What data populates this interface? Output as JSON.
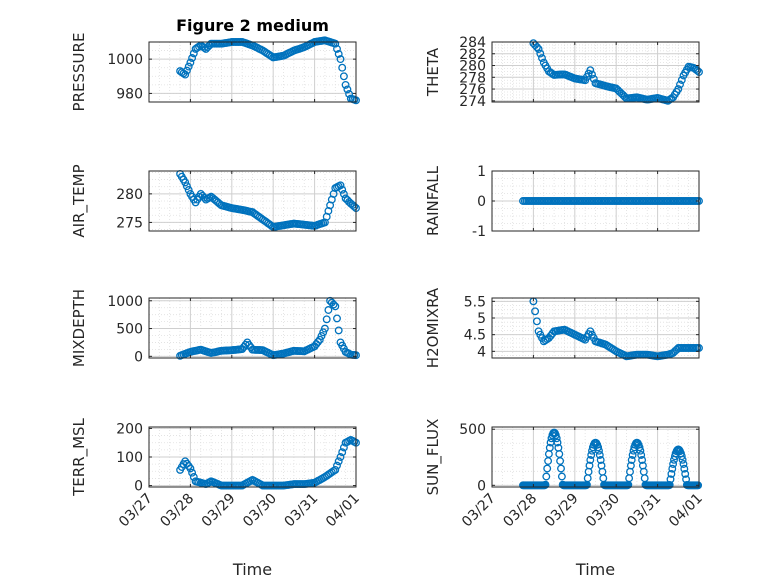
{
  "figure": {
    "title": "Figure 2 medium",
    "marker_color": "#0072BD",
    "axis_color": "#262626",
    "grid_color": "#DFDFDF"
  },
  "chart_data": [
    {
      "id": "pressure",
      "type": "scatter",
      "ylabel": "PRESSURE",
      "title": "Figure 2 medium",
      "xlim": [
        "03/27",
        "04/01"
      ],
      "ylim": [
        975,
        1010
      ],
      "yticks": [
        980,
        1000
      ],
      "xticks": [
        "03/27",
        "03/28",
        "03/29",
        "03/30",
        "03/31",
        "04/01"
      ],
      "show_xticklabels": false,
      "grid": true,
      "series": [
        {
          "x": [
            "03/27 18:00",
            "03/27 21:00",
            "03/28 00:00",
            "03/28 03:00",
            "03/28 06:00",
            "03/28 09:00",
            "03/28 12:00",
            "03/28 18:00",
            "03/29 00:00",
            "03/29 06:00",
            "03/29 12:00",
            "03/29 18:00",
            "03/30 00:00",
            "03/30 06:00",
            "03/30 12:00",
            "03/30 18:00",
            "03/31 00:00",
            "03/31 06:00",
            "03/31 09:00",
            "03/31 12:00",
            "03/31 15:00",
            "03/31 18:00",
            "03/31 21:00",
            "04/01 00:00"
          ],
          "y": [
            993,
            991,
            998,
            1006,
            1008,
            1006,
            1009,
            1009,
            1010,
            1010,
            1008,
            1005,
            1001,
            1002,
            1005,
            1007,
            1010,
            1011,
            1010,
            1009,
            1000,
            985,
            977,
            976
          ]
        }
      ]
    },
    {
      "id": "theta",
      "type": "scatter",
      "ylabel": "THETA",
      "xlim": [
        "03/27",
        "04/01"
      ],
      "ylim": [
        273.8,
        284
      ],
      "yticks": [
        274,
        276,
        278,
        280,
        282,
        284
      ],
      "ytick_labels": [
        "274",
        "276",
        "278",
        "280",
        "282",
        "284"
      ],
      "xticks": [
        "03/27",
        "03/28",
        "03/29",
        "03/30",
        "03/31",
        "04/01"
      ],
      "show_xticklabels": false,
      "grid": true,
      "series": [
        {
          "x": [
            "03/28 00:00",
            "03/28 03:00",
            "03/28 06:00",
            "03/28 09:00",
            "03/28 12:00",
            "03/28 18:00",
            "03/29 00:00",
            "03/29 06:00",
            "03/29 09:00",
            "03/29 12:00",
            "03/29 18:00",
            "03/30 00:00",
            "03/30 06:00",
            "03/30 12:00",
            "03/30 18:00",
            "03/31 00:00",
            "03/31 06:00",
            "03/31 09:00",
            "03/31 12:00",
            "03/31 15:00",
            "03/31 18:00",
            "03/31 21:00",
            "04/01 00:00"
          ],
          "y": [
            283.8,
            282.8,
            280.5,
            279,
            278.4,
            278.5,
            277.8,
            277.5,
            279.2,
            277,
            276.5,
            276.1,
            274.4,
            274.6,
            274.2,
            274.5,
            274,
            274.6,
            276,
            278.3,
            279.8,
            279.6,
            278.9
          ]
        }
      ]
    },
    {
      "id": "air_temp",
      "type": "scatter",
      "ylabel": "AIR_TEMP",
      "xlim": [
        "03/27",
        "04/01"
      ],
      "ylim": [
        273.5,
        284
      ],
      "yticks": [
        275,
        280
      ],
      "xticks": [
        "03/27",
        "03/28",
        "03/29",
        "03/30",
        "03/31",
        "04/01"
      ],
      "show_xticklabels": false,
      "grid": true,
      "series": [
        {
          "x": [
            "03/27 18:00",
            "03/27 21:00",
            "03/28 00:00",
            "03/28 03:00",
            "03/28 06:00",
            "03/28 09:00",
            "03/28 12:00",
            "03/28 18:00",
            "03/29 00:00",
            "03/29 06:00",
            "03/29 12:00",
            "03/29 18:00",
            "03/30 00:00",
            "03/30 06:00",
            "03/30 12:00",
            "03/30 18:00",
            "03/31 00:00",
            "03/31 06:00",
            "03/31 09:00",
            "03/31 12:00",
            "03/31 15:00",
            "03/31 18:00",
            "03/31 21:00",
            "04/01 00:00"
          ],
          "y": [
            283.5,
            282,
            280,
            278.5,
            280,
            279,
            279.5,
            278,
            277.5,
            277.2,
            276.8,
            275.5,
            274.2,
            274.5,
            274.8,
            274.6,
            274.4,
            275,
            278,
            281,
            281.5,
            279.2,
            278.3,
            277.5
          ]
        }
      ]
    },
    {
      "id": "rainfall",
      "type": "scatter",
      "ylabel": "RAINFALL",
      "xlim": [
        "03/27",
        "04/01"
      ],
      "ylim": [
        -1,
        1
      ],
      "yticks": [
        -1,
        0,
        1
      ],
      "xticks": [
        "03/27",
        "03/28",
        "03/29",
        "03/30",
        "03/31",
        "04/01"
      ],
      "show_xticklabels": false,
      "grid": true,
      "series": [
        {
          "x_start": "03/27 18:00",
          "x_end": "04/01 00:00",
          "y": 0
        }
      ]
    },
    {
      "id": "mixdepth",
      "type": "scatter",
      "ylabel": "MIXDEPTH",
      "xlim": [
        "03/27",
        "04/01"
      ],
      "ylim": [
        -30,
        1050
      ],
      "yticks": [
        0,
        500,
        1000
      ],
      "xticks": [
        "03/27",
        "03/28",
        "03/29",
        "03/30",
        "03/31",
        "04/01"
      ],
      "show_xticklabels": false,
      "grid": true,
      "series": [
        {
          "x": [
            "03/27 18:00",
            "03/28 00:00",
            "03/28 06:00",
            "03/28 12:00",
            "03/28 18:00",
            "03/29 00:00",
            "03/29 06:00",
            "03/29 09:00",
            "03/29 12:00",
            "03/29 18:00",
            "03/30 00:00",
            "03/30 06:00",
            "03/30 12:00",
            "03/30 18:00",
            "03/31 00:00",
            "03/31 03:00",
            "03/31 06:00",
            "03/31 09:00",
            "03/31 12:00",
            "03/31 15:00",
            "03/31 18:00",
            "03/31 21:00",
            "04/01 00:00"
          ],
          "y": [
            10,
            80,
            120,
            60,
            100,
            110,
            130,
            250,
            120,
            110,
            20,
            50,
            100,
            90,
            180,
            300,
            500,
            1000,
            900,
            250,
            80,
            30,
            20
          ]
        }
      ]
    },
    {
      "id": "h2omixra",
      "type": "scatter",
      "ylabel": "H2OMIXRA",
      "xlim": [
        "03/27",
        "04/01"
      ],
      "ylim": [
        3.8,
        5.6
      ],
      "yticks": [
        4,
        4.5,
        5,
        5.5
      ],
      "xticks": [
        "03/27",
        "03/28",
        "03/29",
        "03/30",
        "03/31",
        "04/01"
      ],
      "show_xticklabels": false,
      "grid": true,
      "series": [
        {
          "x": [
            "03/28 00:00",
            "03/28 03:00",
            "03/28 06:00",
            "03/28 09:00",
            "03/28 12:00",
            "03/28 18:00",
            "03/29 00:00",
            "03/29 06:00",
            "03/29 09:00",
            "03/29 12:00",
            "03/29 18:00",
            "03/30 00:00",
            "03/30 06:00",
            "03/30 12:00",
            "03/30 18:00",
            "03/31 00:00",
            "03/31 06:00",
            "03/31 09:00",
            "03/31 12:00",
            "03/31 18:00",
            "04/01 00:00"
          ],
          "y": [
            5.5,
            4.6,
            4.3,
            4.4,
            4.6,
            4.65,
            4.5,
            4.35,
            4.6,
            4.3,
            4.2,
            4.0,
            3.85,
            3.9,
            3.9,
            3.85,
            3.9,
            3.95,
            4.1,
            4.1,
            4.1
          ]
        }
      ]
    },
    {
      "id": "terr_msl",
      "type": "scatter",
      "ylabel": "TERR_MSL",
      "xlim": [
        "03/27",
        "04/01"
      ],
      "ylim": [
        -5,
        205
      ],
      "yticks": [
        0,
        100,
        200
      ],
      "xticks": [
        "03/27",
        "03/28",
        "03/29",
        "03/30",
        "03/31",
        "04/01"
      ],
      "show_xticklabels": true,
      "xlabel": "Time",
      "grid": true,
      "series": [
        {
          "x": [
            "03/27 18:00",
            "03/27 21:00",
            "03/28 00:00",
            "03/28 03:00",
            "03/28 06:00",
            "03/28 09:00",
            "03/28 12:00",
            "03/28 18:00",
            "03/29 00:00",
            "03/29 06:00",
            "03/29 12:00",
            "03/29 18:00",
            "03/30 00:00",
            "03/30 06:00",
            "03/30 12:00",
            "03/30 18:00",
            "03/31 00:00",
            "03/31 06:00",
            "03/31 12:00",
            "03/31 15:00",
            "03/31 18:00",
            "03/31 21:00",
            "04/01 00:00"
          ],
          "y": [
            55,
            85,
            60,
            15,
            10,
            5,
            15,
            0,
            0,
            0,
            20,
            0,
            0,
            0,
            5,
            5,
            10,
            30,
            55,
            100,
            150,
            160,
            150
          ]
        }
      ]
    },
    {
      "id": "sun_flux",
      "type": "scatter",
      "ylabel": "SUN_FLUX",
      "xlim": [
        "03/27",
        "04/01"
      ],
      "ylim": [
        -15,
        520
      ],
      "yticks": [
        0,
        500
      ],
      "xticks": [
        "03/27",
        "03/28",
        "03/29",
        "03/30",
        "03/31",
        "04/01"
      ],
      "show_xticklabels": true,
      "xlabel": "Time",
      "grid": true,
      "series": [
        {
          "diurnal": true,
          "days": [
            "03/28",
            "03/29",
            "03/30",
            "03/31"
          ],
          "peak_times": [
            "03/28 12:00",
            "03/29 12:00",
            "03/30 12:00",
            "03/31 12:00"
          ],
          "peaks": [
            470,
            380,
            380,
            320
          ],
          "night": 0
        }
      ]
    }
  ]
}
